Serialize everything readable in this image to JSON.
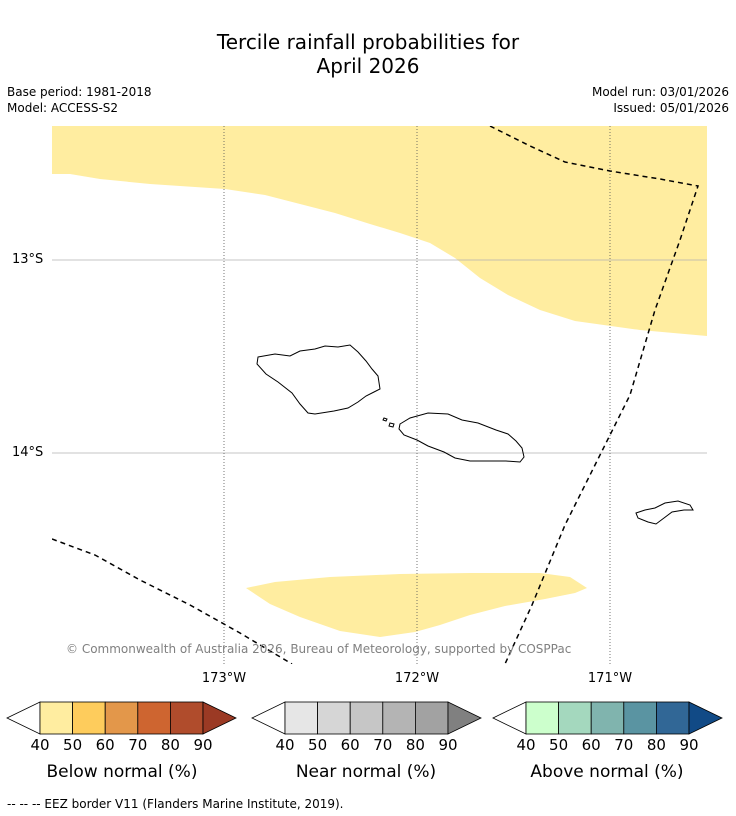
{
  "title": {
    "line1": "Tercile rainfall probabilities for",
    "line2": "April 2026"
  },
  "meta": {
    "base_period": "Base period: 1981-2018",
    "model": "Model: ACCESS-S2",
    "model_run": "Model run: 03/01/2026",
    "issued": "Issued: 05/01/2026"
  },
  "map": {
    "lat_labels": [
      "13°S",
      "14°S"
    ],
    "lon_labels": [
      "173°W",
      "172°W",
      "171°W"
    ],
    "copyright": "© Commonwealth of Australia 2026, Bureau of Meteorology, supported by COSPPac",
    "fill_color": "#FFEDA0",
    "eez_color": "#000000"
  },
  "colorbars": [
    {
      "label": "Below normal (%)",
      "ticks": [
        "40",
        "50",
        "60",
        "70",
        "80",
        "90"
      ],
      "colors": [
        "#FFEDA0",
        "#FECC5C",
        "#E3974A",
        "#CE6530",
        "#B04C2C",
        "#9B3A24"
      ]
    },
    {
      "label": "Near normal (%)",
      "ticks": [
        "40",
        "50",
        "60",
        "70",
        "80",
        "90"
      ],
      "colors": [
        "#E6E6E6",
        "#D6D6D6",
        "#C6C6C6",
        "#B4B4B4",
        "#A2A2A2",
        "#808080"
      ]
    },
    {
      "label": "Above normal (%)",
      "ticks": [
        "40",
        "50",
        "60",
        "70",
        "80",
        "90"
      ],
      "colors": [
        "#CCFFCC",
        "#A4D8BE",
        "#80B4AE",
        "#5A94A2",
        "#316796",
        "#114A86"
      ]
    }
  ],
  "footer": "--  --  -- EEZ border V11 (Flanders Marine Institute, 2019)."
}
